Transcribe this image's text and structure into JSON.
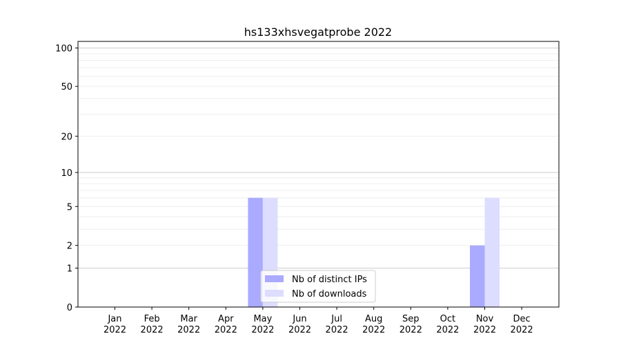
{
  "chart_data": {
    "type": "bar",
    "title": "hs133xhsvegatprobe 2022",
    "xlabel": "",
    "ylabel": "",
    "yscale": "symlog",
    "ylim": [
      0,
      112
    ],
    "yticks": [
      0,
      1,
      2,
      5,
      10,
      20,
      50,
      100
    ],
    "grid": true,
    "legend_position": "lower-center",
    "categories": [
      "Jan\n2022",
      "Feb\n2022",
      "Mar\n2022",
      "Apr\n2022",
      "May\n2022",
      "Jun\n2022",
      "Jul\n2022",
      "Aug\n2022",
      "Sep\n2022",
      "Oct\n2022",
      "Nov\n2022",
      "Dec\n2022"
    ],
    "series": [
      {
        "name": "Nb of distinct IPs",
        "color": "#aaaaff",
        "values": [
          0,
          0,
          0,
          0,
          6,
          0,
          0,
          0,
          0,
          0,
          2,
          0
        ]
      },
      {
        "name": "Nb of downloads",
        "color": "#ddddff",
        "values": [
          0,
          0,
          0,
          0,
          6,
          0,
          0,
          0,
          0,
          0,
          6,
          0
        ]
      }
    ]
  }
}
